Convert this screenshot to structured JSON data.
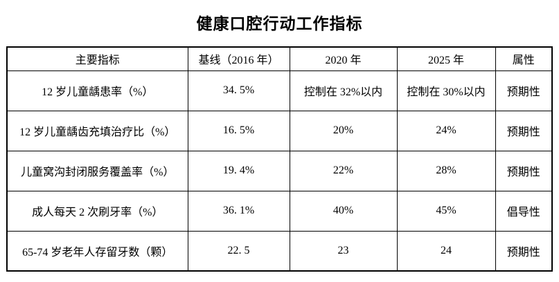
{
  "page": {
    "title": "健康口腔行动工作指标",
    "background_color": "#ffffff",
    "text_color": "#000000",
    "border_color": "#000000"
  },
  "table": {
    "columns": [
      "主要指标",
      "基线（2016 年）",
      "2020 年",
      "2025 年",
      "属性"
    ],
    "rows": [
      {
        "indicator": "12 岁儿童龋患率（%）",
        "baseline": "34. 5%",
        "y2020": "控制在 32%以内",
        "y2025": "控制在 30%以内",
        "attribute": "预期性"
      },
      {
        "indicator": "12 岁儿童龋齿充填治疗比（%）",
        "baseline": "16. 5%",
        "y2020": "20%",
        "y2025": "24%",
        "attribute": "预期性"
      },
      {
        "indicator": "儿童窝沟封闭服务覆盖率（%）",
        "baseline": "19. 4%",
        "y2020": "22%",
        "y2025": "28%",
        "attribute": "预期性"
      },
      {
        "indicator": "成人每天 2 次刷牙率（%）",
        "baseline": "36. 1%",
        "y2020": "40%",
        "y2025": "45%",
        "attribute": "倡导性"
      },
      {
        "indicator": "65-74 岁老年人存留牙数（颗）",
        "baseline": "22. 5",
        "y2020": "23",
        "y2025": "24",
        "attribute": "预期性"
      }
    ]
  }
}
